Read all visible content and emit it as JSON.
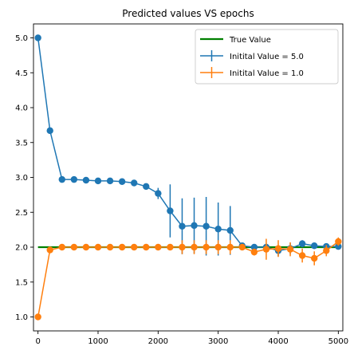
{
  "chart_data": {
    "type": "line",
    "title": "Predicted values VS epochs",
    "xlabel": "",
    "ylabel": "",
    "xlim": [
      -75,
      5075
    ],
    "ylim": [
      0.8,
      5.2
    ],
    "xticks": [
      0,
      1000,
      2000,
      3000,
      4000,
      5000
    ],
    "yticks": [
      1.0,
      1.5,
      2.0,
      2.5,
      3.0,
      3.5,
      4.0,
      4.5,
      5.0
    ],
    "xtick_labels": [
      "0",
      "1000",
      "2000",
      "3000",
      "4000",
      "5000"
    ],
    "ytick_labels": [
      "1.0",
      "1.5",
      "2.0",
      "2.5",
      "3.0",
      "3.5",
      "4.0",
      "4.5",
      "5.0"
    ],
    "grid": false,
    "legend_position": "upper right",
    "true_value": {
      "name": "True Value",
      "color": "#008000",
      "x": [
        0,
        5000
      ],
      "y": [
        2.0,
        2.0
      ]
    },
    "series": [
      {
        "name": "Initital Value = 5.0",
        "color": "#1f77b4",
        "x": [
          0,
          200,
          400,
          600,
          800,
          1000,
          1200,
          1400,
          1600,
          1800,
          2000,
          2200,
          2400,
          2600,
          2800,
          3000,
          3200,
          3400,
          3600,
          3800,
          4000,
          4200,
          4400,
          4600,
          4800,
          5000
        ],
        "y": [
          5.0,
          3.67,
          2.97,
          2.97,
          2.96,
          2.95,
          2.95,
          2.94,
          2.92,
          2.87,
          2.77,
          2.52,
          2.3,
          2.31,
          2.3,
          2.26,
          2.24,
          2.02,
          2.0,
          2.0,
          1.95,
          1.98,
          2.05,
          2.02,
          2.01,
          2.01
        ],
        "err": [
          0.0,
          0.0,
          0.0,
          0.0,
          0.0,
          0.0,
          0.0,
          0.0,
          0.0,
          0.0,
          0.08,
          0.38,
          0.4,
          0.4,
          0.42,
          0.38,
          0.35,
          0.04,
          0.03,
          0.05,
          0.08,
          0.08,
          0.05,
          0.03,
          0.03,
          0.03
        ]
      },
      {
        "name": "Initital Value = 1.0",
        "color": "#ff7f0e",
        "x": [
          0,
          200,
          400,
          600,
          800,
          1000,
          1200,
          1400,
          1600,
          1800,
          2000,
          2200,
          2400,
          2600,
          2800,
          3000,
          3200,
          3400,
          3600,
          3800,
          4000,
          4200,
          4400,
          4600,
          4800,
          5000
        ],
        "y": [
          1.0,
          1.96,
          2.0,
          2.0,
          2.0,
          2.0,
          2.0,
          2.0,
          2.0,
          2.0,
          2.0,
          2.0,
          2.0,
          2.0,
          2.0,
          2.0,
          2.0,
          2.0,
          1.93,
          1.97,
          1.98,
          1.97,
          1.88,
          1.84,
          1.95,
          2.08
        ],
        "err": [
          0.0,
          0.0,
          0.0,
          0.0,
          0.0,
          0.0,
          0.0,
          0.0,
          0.0,
          0.0,
          0.0,
          0.0,
          0.1,
          0.1,
          0.1,
          0.1,
          0.1,
          0.02,
          0.05,
          0.15,
          0.12,
          0.1,
          0.1,
          0.1,
          0.08,
          0.06
        ]
      }
    ]
  }
}
